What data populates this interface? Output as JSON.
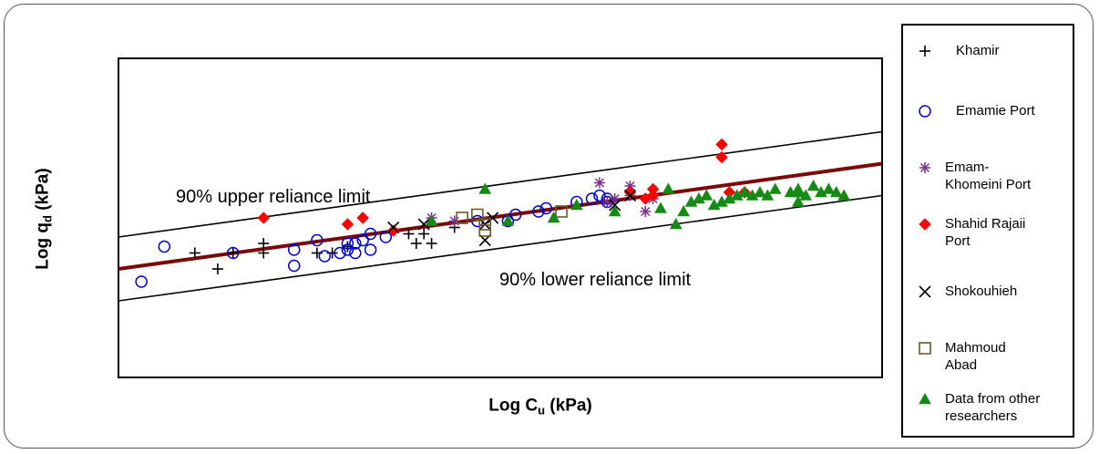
{
  "chart_data": {
    "type": "scatter",
    "xlabel_main": "Log C",
    "xlabel_sub": "u",
    "xlabel_unit": " (kPa)",
    "ylabel_main": "Log q",
    "ylabel_sub": "d",
    "ylabel_unit": " (kPa)",
    "xlim": [
      0,
      100
    ],
    "ylim": [
      0,
      100
    ],
    "annotations": {
      "upper": "90% upper reliance limit",
      "lower": "90% lower reliance limit"
    },
    "lines": [
      {
        "role": "regression",
        "color": "#7a0a0a",
        "points": [
          [
            0,
            34
          ],
          [
            100,
            67
          ]
        ]
      },
      {
        "role": "upper-limit",
        "color": "#000000",
        "points": [
          [
            0,
            44
          ],
          [
            100,
            77
          ]
        ]
      },
      {
        "role": "lower-limit",
        "color": "#000000",
        "points": [
          [
            0,
            24
          ],
          [
            100,
            57
          ]
        ]
      }
    ],
    "series": [
      {
        "name": "Khamir",
        "marker": "plus",
        "color": "#000000",
        "points": [
          [
            10,
            39
          ],
          [
            13,
            34
          ],
          [
            15,
            39
          ],
          [
            19,
            42
          ],
          [
            19,
            39
          ],
          [
            26,
            39
          ],
          [
            28,
            39
          ],
          [
            30,
            41
          ],
          [
            38,
            45
          ],
          [
            39,
            42
          ],
          [
            40,
            45
          ],
          [
            41,
            42
          ],
          [
            44,
            47
          ]
        ]
      },
      {
        "name": "Emamie Port",
        "marker": "circle",
        "color": "#0000cc",
        "points": [
          [
            3,
            30
          ],
          [
            6,
            41
          ],
          [
            15,
            39
          ],
          [
            23,
            40
          ],
          [
            23,
            35
          ],
          [
            26,
            43
          ],
          [
            27,
            38
          ],
          [
            29,
            39
          ],
          [
            30,
            42
          ],
          [
            30,
            40
          ],
          [
            31,
            39
          ],
          [
            31,
            42
          ],
          [
            32,
            43
          ],
          [
            33,
            40
          ],
          [
            33,
            45
          ],
          [
            35,
            44
          ],
          [
            47,
            49
          ],
          [
            51,
            49
          ],
          [
            52,
            51
          ],
          [
            55,
            52
          ],
          [
            56,
            53
          ],
          [
            60,
            55
          ],
          [
            62,
            56
          ],
          [
            63,
            57
          ],
          [
            64,
            56
          ],
          [
            64,
            55
          ]
        ]
      },
      {
        "name": "Emam-Khomeini Port",
        "marker": "asterisk",
        "color": "#7b2d8b",
        "points": [
          [
            41,
            50
          ],
          [
            44,
            49
          ],
          [
            63,
            61
          ],
          [
            64,
            55
          ],
          [
            65,
            56
          ],
          [
            67,
            60
          ],
          [
            67,
            57
          ],
          [
            69,
            52
          ],
          [
            70,
            56
          ]
        ]
      },
      {
        "name": "Shahid Rajaii Port",
        "marker": "diamond",
        "color": "#ff0000",
        "points": [
          [
            19,
            50
          ],
          [
            30,
            48
          ],
          [
            32,
            50
          ],
          [
            36,
            46
          ],
          [
            67,
            58
          ],
          [
            69,
            56
          ],
          [
            70,
            57
          ],
          [
            70,
            59
          ],
          [
            79,
            73
          ],
          [
            79,
            69
          ],
          [
            80,
            58
          ],
          [
            82,
            58
          ]
        ]
      },
      {
        "name": "Shokouhieh",
        "marker": "x",
        "color": "#000000",
        "points": [
          [
            36,
            47
          ],
          [
            40,
            48
          ],
          [
            48,
            43
          ],
          [
            48,
            48
          ],
          [
            49,
            50
          ],
          [
            65,
            54
          ],
          [
            67,
            57
          ]
        ]
      },
      {
        "name": "Mahmoud Abad",
        "marker": "square",
        "color": "#6b5a2a",
        "points": [
          [
            45,
            50
          ],
          [
            47,
            51
          ],
          [
            48,
            46
          ],
          [
            48,
            48
          ],
          [
            58,
            52
          ]
        ]
      },
      {
        "name": "Data from other researchers",
        "marker": "triangle",
        "color": "#158a15",
        "points": [
          [
            41,
            49
          ],
          [
            48,
            59
          ],
          [
            51,
            49
          ],
          [
            57,
            50
          ],
          [
            60,
            54
          ],
          [
            65,
            52
          ],
          [
            71,
            53
          ],
          [
            72,
            59
          ],
          [
            73,
            48
          ],
          [
            74,
            52
          ],
          [
            75,
            55
          ],
          [
            76,
            56
          ],
          [
            77,
            57
          ],
          [
            78,
            54
          ],
          [
            79,
            55
          ],
          [
            80,
            56
          ],
          [
            81,
            57
          ],
          [
            82,
            58
          ],
          [
            83,
            57
          ],
          [
            84,
            58
          ],
          [
            85,
            57
          ],
          [
            86,
            59
          ],
          [
            88,
            58
          ],
          [
            89,
            58
          ],
          [
            89,
            55
          ],
          [
            90,
            57
          ],
          [
            91,
            60
          ],
          [
            92,
            58
          ],
          [
            93,
            59
          ],
          [
            94,
            58
          ],
          [
            95,
            57
          ],
          [
            89,
            59
          ]
        ]
      }
    ]
  },
  "legend": [
    {
      "label": "Khamir",
      "marker": "plus",
      "color": "#000000"
    },
    {
      "label": "Emamie Port",
      "marker": "circle",
      "color": "#0000cc"
    },
    {
      "label": "Emam-\nKhomeini Port",
      "marker": "asterisk",
      "color": "#7b2d8b"
    },
    {
      "label": "Shahid Rajaii\nPort",
      "marker": "diamond",
      "color": "#ff0000"
    },
    {
      "label": "Shokouhieh",
      "marker": "x",
      "color": "#000000"
    },
    {
      "label": "Mahmoud\nAbad",
      "marker": "square",
      "color": "#6b5a2a"
    },
    {
      "label": "Data from other\nresearchers",
      "marker": "triangle",
      "color": "#158a15"
    }
  ]
}
